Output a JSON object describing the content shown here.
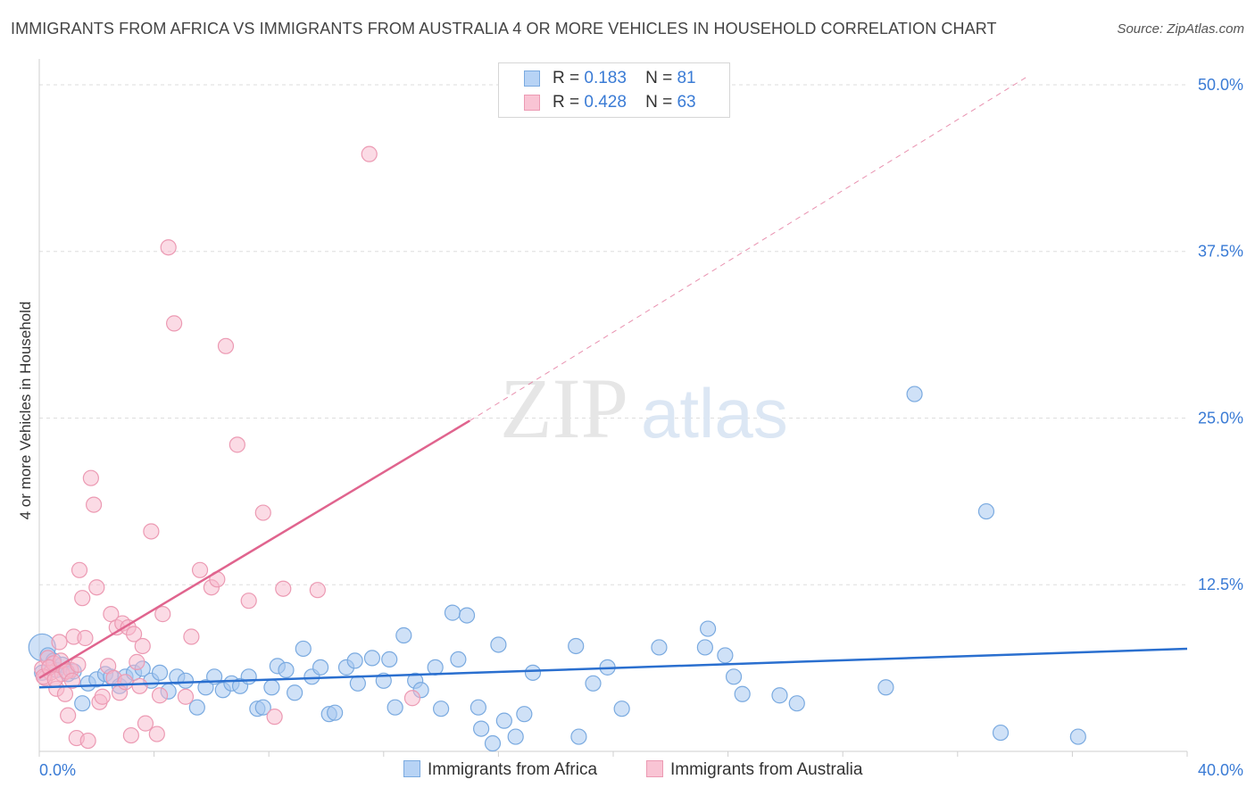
{
  "title": "IMMIGRANTS FROM AFRICA VS IMMIGRANTS FROM AUSTRALIA 4 OR MORE VEHICLES IN HOUSEHOLD CORRELATION CHART",
  "source": "Source: ZipAtlas.com",
  "watermark": {
    "zip": "ZIP",
    "atlas": "atlas"
  },
  "legend": {
    "africa": {
      "r_label": "R =",
      "r_value": "0.183",
      "n_label": "N =",
      "n_value": "81"
    },
    "australia": {
      "r_label": "R =",
      "r_value": "0.428",
      "n_label": "N =",
      "n_value": "63"
    }
  },
  "colors": {
    "africa_fill": "#a8c8f0",
    "africa_stroke": "#7aaae0",
    "africa_line": "#2a6fcf",
    "australia_fill": "#f7b8cb",
    "australia_stroke": "#ec9ab3",
    "australia_line": "#e0648e",
    "axis_text": "#3a7bd5",
    "grid": "#dddddd"
  },
  "chart_data": {
    "type": "scatter",
    "xlabel": "",
    "ylabel": "4 or more Vehicles in Household",
    "xlim": [
      0,
      40
    ],
    "ylim": [
      0,
      51
    ],
    "x_tick_labels": [
      "0.0%",
      "40.0%"
    ],
    "y_ticks": [
      12.5,
      25.0,
      37.5,
      50.0
    ],
    "y_tick_labels": [
      "12.5%",
      "25.0%",
      "37.5%",
      "50.0%"
    ],
    "series": [
      {
        "name": "Immigrants from Africa",
        "trend": {
          "x": [
            0,
            40
          ],
          "y": [
            4.8,
            7.7
          ],
          "dashed_to": null
        },
        "points": [
          [
            0.1,
            7.8
          ],
          [
            0.3,
            7.2
          ],
          [
            0.5,
            6.8
          ],
          [
            0.6,
            6.1
          ],
          [
            0.8,
            6.5
          ],
          [
            1.0,
            5.8
          ],
          [
            1.2,
            6.0
          ],
          [
            1.5,
            3.6
          ],
          [
            1.7,
            5.1
          ],
          [
            2.0,
            5.4
          ],
          [
            2.3,
            5.8
          ],
          [
            2.5,
            5.6
          ],
          [
            2.8,
            4.9
          ],
          [
            3.0,
            5.6
          ],
          [
            3.3,
            5.9
          ],
          [
            3.6,
            6.2
          ],
          [
            3.9,
            5.3
          ],
          [
            4.2,
            5.9
          ],
          [
            4.5,
            4.5
          ],
          [
            4.8,
            5.6
          ],
          [
            5.1,
            5.3
          ],
          [
            5.5,
            3.3
          ],
          [
            5.8,
            4.8
          ],
          [
            6.1,
            5.6
          ],
          [
            6.4,
            4.6
          ],
          [
            6.7,
            5.1
          ],
          [
            7.0,
            4.9
          ],
          [
            7.3,
            5.6
          ],
          [
            7.6,
            3.2
          ],
          [
            7.8,
            3.3
          ],
          [
            8.1,
            4.8
          ],
          [
            8.3,
            6.4
          ],
          [
            8.6,
            6.1
          ],
          [
            8.9,
            4.4
          ],
          [
            9.2,
            7.7
          ],
          [
            9.5,
            5.6
          ],
          [
            9.8,
            6.3
          ],
          [
            10.1,
            2.8
          ],
          [
            10.3,
            2.9
          ],
          [
            10.7,
            6.3
          ],
          [
            11.0,
            6.8
          ],
          [
            11.1,
            5.1
          ],
          [
            11.6,
            7.0
          ],
          [
            12.0,
            5.3
          ],
          [
            12.2,
            6.9
          ],
          [
            12.4,
            3.3
          ],
          [
            12.7,
            8.7
          ],
          [
            13.1,
            5.3
          ],
          [
            13.3,
            4.6
          ],
          [
            13.8,
            6.3
          ],
          [
            14.0,
            3.2
          ],
          [
            14.4,
            10.4
          ],
          [
            14.6,
            6.9
          ],
          [
            14.9,
            10.2
          ],
          [
            15.3,
            3.3
          ],
          [
            15.4,
            1.7
          ],
          [
            15.8,
            0.6
          ],
          [
            16.0,
            8.0
          ],
          [
            16.2,
            2.3
          ],
          [
            16.6,
            1.1
          ],
          [
            16.9,
            2.8
          ],
          [
            17.2,
            5.9
          ],
          [
            18.7,
            7.9
          ],
          [
            18.8,
            1.1
          ],
          [
            19.3,
            5.1
          ],
          [
            19.8,
            6.3
          ],
          [
            20.3,
            3.2
          ],
          [
            21.6,
            7.8
          ],
          [
            23.2,
            7.8
          ],
          [
            23.3,
            9.2
          ],
          [
            23.9,
            7.2
          ],
          [
            24.2,
            5.6
          ],
          [
            24.5,
            4.3
          ],
          [
            25.8,
            4.2
          ],
          [
            26.4,
            3.6
          ],
          [
            29.5,
            4.8
          ],
          [
            30.5,
            26.8
          ],
          [
            33.0,
            18.0
          ],
          [
            33.5,
            1.4
          ],
          [
            36.2,
            1.1
          ],
          [
            0.1,
            5.9
          ]
        ]
      },
      {
        "name": "Immigrants from Australia",
        "trend": {
          "x": [
            0,
            15.0
          ],
          "y": [
            5.5,
            24.8
          ],
          "dashed_to": {
            "x": 34.5,
            "y": 50.7
          }
        },
        "points": [
          [
            0.1,
            6.2
          ],
          [
            0.2,
            5.5
          ],
          [
            0.3,
            7.0
          ],
          [
            0.4,
            5.9
          ],
          [
            0.5,
            6.6
          ],
          [
            0.6,
            4.7
          ],
          [
            0.7,
            8.2
          ],
          [
            0.8,
            5.8
          ],
          [
            0.9,
            4.3
          ],
          [
            1.0,
            2.7
          ],
          [
            1.1,
            6.1
          ],
          [
            1.2,
            8.6
          ],
          [
            1.3,
            1.0
          ],
          [
            1.4,
            13.6
          ],
          [
            1.5,
            11.5
          ],
          [
            1.6,
            8.5
          ],
          [
            1.7,
            0.8
          ],
          [
            1.8,
            20.5
          ],
          [
            1.9,
            18.5
          ],
          [
            2.0,
            12.3
          ],
          [
            2.1,
            3.7
          ],
          [
            2.2,
            4.1
          ],
          [
            2.4,
            6.4
          ],
          [
            2.5,
            10.3
          ],
          [
            2.6,
            5.5
          ],
          [
            2.7,
            9.3
          ],
          [
            2.8,
            4.4
          ],
          [
            2.9,
            9.6
          ],
          [
            3.0,
            5.2
          ],
          [
            3.1,
            9.3
          ],
          [
            3.2,
            1.2
          ],
          [
            3.3,
            8.8
          ],
          [
            3.4,
            6.7
          ],
          [
            3.5,
            4.9
          ],
          [
            3.6,
            7.9
          ],
          [
            3.7,
            2.1
          ],
          [
            3.9,
            16.5
          ],
          [
            4.1,
            1.3
          ],
          [
            4.2,
            4.2
          ],
          [
            4.3,
            10.3
          ],
          [
            4.5,
            37.8
          ],
          [
            4.7,
            32.1
          ],
          [
            5.1,
            4.1
          ],
          [
            5.3,
            8.6
          ],
          [
            5.6,
            13.6
          ],
          [
            6.0,
            12.3
          ],
          [
            6.2,
            12.9
          ],
          [
            6.5,
            30.4
          ],
          [
            6.9,
            23.0
          ],
          [
            7.3,
            11.3
          ],
          [
            7.8,
            17.9
          ],
          [
            8.2,
            2.6
          ],
          [
            8.5,
            12.2
          ],
          [
            9.7,
            12.1
          ],
          [
            11.5,
            44.8
          ],
          [
            13.0,
            4.0
          ],
          [
            0.15,
            5.6
          ],
          [
            0.35,
            6.3
          ],
          [
            0.55,
            5.4
          ],
          [
            0.75,
            6.8
          ],
          [
            0.95,
            6.0
          ],
          [
            1.15,
            5.3
          ],
          [
            1.35,
            6.5
          ]
        ]
      }
    ]
  },
  "bottom_legend": {
    "africa": "Immigrants from Africa",
    "australia": "Immigrants from Australia"
  }
}
